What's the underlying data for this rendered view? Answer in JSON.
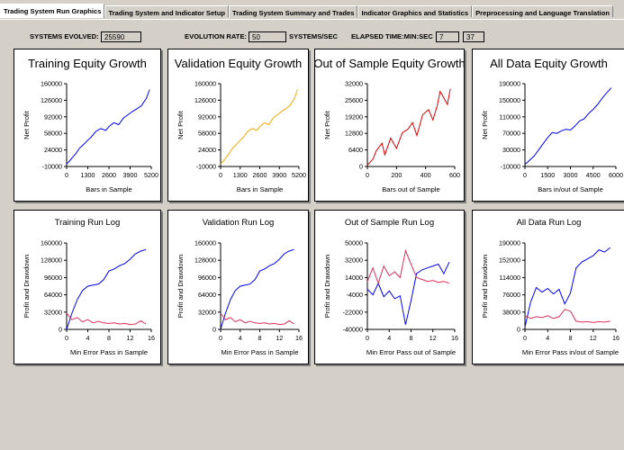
{
  "tabs": [
    {
      "label": "Trading System Run Graphics",
      "active": true
    },
    {
      "label": "Trading System and Indicator Setup",
      "active": false
    },
    {
      "label": "Trading System Summary and Trades",
      "active": false
    },
    {
      "label": "Indicator Graphics and Statistics",
      "active": false
    },
    {
      "label": "Preprocessing and Language Translation",
      "active": false
    }
  ],
  "stats": {
    "systems_evolved_label": "SYSTEMS EVOLVED:",
    "systems_evolved_value": "25590",
    "evolution_rate_label": "EVOLUTION RATE:",
    "evolution_rate_value": "50",
    "evolution_rate_unit": "SYSTEMS/SEC",
    "elapsed_label": "ELAPSED TIME:MIN:SEC",
    "elapsed_min": "7",
    "elapsed_sec": "37"
  },
  "colors": {
    "blue": "#0000ff",
    "orange": "#ffa500",
    "red": "#e00000",
    "pink": "#e0305a"
  },
  "chart_data": [
    {
      "type": "line",
      "title": "Training Equity Growth",
      "xlabel": "Bars in Sample",
      "ylabel": "Net Profit",
      "xlim": [
        0,
        5200
      ],
      "ylim": [
        -10000,
        160000
      ],
      "xticks": [
        "0",
        "1300",
        "2600",
        "3900",
        "5200"
      ],
      "yticks": [
        "160000",
        "126000",
        "92000",
        "58000",
        "24000",
        "-10000"
      ],
      "series": [
        {
          "color": "#0000ff",
          "x": [
            0,
            200,
            400,
            600,
            800,
            1000,
            1300,
            1500,
            1800,
            2100,
            2400,
            2600,
            2900,
            3200,
            3500,
            3800,
            4000,
            4300,
            4600,
            4900,
            5100
          ],
          "y": [
            -5000,
            2000,
            10000,
            18000,
            28000,
            34000,
            44000,
            50000,
            62000,
            68000,
            64000,
            72000,
            80000,
            76000,
            90000,
            97000,
            102000,
            108000,
            115000,
            130000,
            148000
          ]
        }
      ]
    },
    {
      "type": "line",
      "title": "Validation Equity Growth",
      "xlabel": "Bars in Sample",
      "ylabel": "Net Profit",
      "xlim": [
        0,
        5200
      ],
      "ylim": [
        -10000,
        160000
      ],
      "xticks": [
        "0",
        "1300",
        "2600",
        "3900",
        "5200"
      ],
      "yticks": [
        "160000",
        "126000",
        "92000",
        "58000",
        "24000",
        "-10000"
      ],
      "series": [
        {
          "color": "#ffa500",
          "x": [
            0,
            200,
            400,
            600,
            800,
            1000,
            1300,
            1500,
            1800,
            2100,
            2400,
            2600,
            2900,
            3200,
            3500,
            3800,
            4000,
            4300,
            4600,
            4900,
            5100
          ],
          "y": [
            -5000,
            2000,
            10000,
            18000,
            28000,
            34000,
            44000,
            50000,
            62000,
            68000,
            64000,
            72000,
            80000,
            76000,
            90000,
            97000,
            102000,
            108000,
            115000,
            130000,
            148000
          ]
        }
      ]
    },
    {
      "type": "line",
      "title": "Out of Sample Equity Growth",
      "xlabel": "Bars out of Sample",
      "ylabel": "Net Profit",
      "xlim": [
        0,
        600
      ],
      "ylim": [
        0,
        32000
      ],
      "xticks": [
        "0",
        "200",
        "400",
        "600"
      ],
      "yticks": [
        "32000",
        "25600",
        "19200",
        "12800",
        "6400",
        "0"
      ],
      "series": [
        {
          "color": "#e00000",
          "x": [
            0,
            40,
            60,
            100,
            120,
            160,
            200,
            240,
            280,
            310,
            340,
            380,
            420,
            450,
            480,
            500,
            520,
            550,
            570
          ],
          "y": [
            500,
            3000,
            6000,
            9000,
            4500,
            11000,
            7000,
            13000,
            14500,
            17000,
            12000,
            20000,
            22000,
            18000,
            23500,
            29000,
            27000,
            24000,
            30000
          ]
        }
      ]
    },
    {
      "type": "line",
      "title": "All Data Equity Growth",
      "xlabel": "Bars in/out of Sample",
      "ylabel": "Net Profit",
      "xlim": [
        0,
        6000
      ],
      "ylim": [
        -10000,
        190000
      ],
      "xticks": [
        "0",
        "1500",
        "3000",
        "4500",
        "6000"
      ],
      "yticks": [
        "190000",
        "150000",
        "110000",
        "70000",
        "30000",
        "-10000"
      ],
      "series": [
        {
          "color": "#0000ff",
          "x": [
            0,
            300,
            600,
            900,
            1200,
            1500,
            1800,
            2100,
            2400,
            2700,
            3000,
            3300,
            3600,
            3900,
            4200,
            4500,
            4800,
            5100,
            5400,
            5700
          ],
          "y": [
            -5000,
            5000,
            15000,
            30000,
            45000,
            60000,
            72000,
            70000,
            76000,
            80000,
            78000,
            88000,
            100000,
            105000,
            118000,
            128000,
            140000,
            155000,
            168000,
            180000
          ]
        }
      ]
    },
    {
      "type": "line",
      "title": "Training Run Log",
      "xlabel": "Min Error Pass in Sample",
      "ylabel": "Profit and Drawdown",
      "xlim": [
        0,
        16
      ],
      "ylim": [
        0,
        160000
      ],
      "xticks": [
        "0",
        "4",
        "8",
        "12",
        "16"
      ],
      "yticks": [
        "160000",
        "128000",
        "96000",
        "64000",
        "32000",
        "0"
      ],
      "series": [
        {
          "color": "#0000ff",
          "x": [
            0,
            1,
            2,
            3,
            4,
            5,
            6,
            7,
            8,
            9,
            10,
            11,
            12,
            13,
            14,
            15
          ],
          "y": [
            0,
            30000,
            55000,
            72000,
            80000,
            82000,
            84000,
            92000,
            108000,
            112000,
            118000,
            122000,
            130000,
            140000,
            145000,
            148000
          ]
        },
        {
          "color": "#e0305a",
          "x": [
            0,
            1,
            2,
            3,
            4,
            5,
            6,
            7,
            8,
            9,
            10,
            11,
            12,
            13,
            14,
            15
          ],
          "y": [
            30000,
            18000,
            22000,
            14000,
            18000,
            12000,
            15000,
            12000,
            11000,
            12000,
            10000,
            11000,
            9000,
            10000,
            16000,
            10000
          ]
        }
      ]
    },
    {
      "type": "line",
      "title": "Validation Run Log",
      "xlabel": "Min Error Pass in Sample",
      "ylabel": "Profit and Drawdown",
      "xlim": [
        0,
        16
      ],
      "ylim": [
        0,
        160000
      ],
      "xticks": [
        "0",
        "4",
        "8",
        "12",
        "16"
      ],
      "yticks": [
        "160000",
        "128000",
        "96000",
        "64000",
        "32000",
        "0"
      ],
      "series": [
        {
          "color": "#0000ff",
          "x": [
            0,
            1,
            2,
            3,
            4,
            5,
            6,
            7,
            8,
            9,
            10,
            11,
            12,
            13,
            14,
            15
          ],
          "y": [
            0,
            30000,
            55000,
            72000,
            80000,
            82000,
            84000,
            92000,
            108000,
            112000,
            118000,
            122000,
            130000,
            140000,
            145000,
            148000
          ]
        },
        {
          "color": "#e0305a",
          "x": [
            0,
            1,
            2,
            3,
            4,
            5,
            6,
            7,
            8,
            9,
            10,
            11,
            12,
            13,
            14,
            15
          ],
          "y": [
            30000,
            18000,
            22000,
            14000,
            18000,
            12000,
            15000,
            12000,
            11000,
            12000,
            10000,
            11000,
            9000,
            10000,
            16000,
            10000
          ]
        }
      ]
    },
    {
      "type": "line",
      "title": "Out of Sample Run Log",
      "xlabel": "Min Error Pass out of Sample",
      "ylabel": "Profit and Drawdown",
      "xlim": [
        0,
        16
      ],
      "ylim": [
        -40000,
        50000
      ],
      "xticks": [
        "0",
        "4",
        "8",
        "12",
        "16"
      ],
      "yticks": [
        "50000",
        "32000",
        "14000",
        "-4000",
        "-22000",
        "-40000"
      ],
      "series": [
        {
          "color": "#0000ff",
          "x": [
            0,
            1,
            2,
            3,
            4,
            5,
            6,
            7,
            8,
            9,
            10,
            11,
            12,
            13,
            14,
            15
          ],
          "y": [
            2000,
            -4000,
            8000,
            -6000,
            0,
            -8000,
            -5000,
            -35000,
            -10000,
            18000,
            22000,
            24000,
            26000,
            28000,
            18000,
            30000
          ]
        },
        {
          "color": "#e0305a",
          "x": [
            0,
            1,
            2,
            3,
            4,
            5,
            6,
            7,
            8,
            9,
            10,
            11,
            12,
            13,
            14,
            15
          ],
          "y": [
            10000,
            24000,
            8000,
            26000,
            16000,
            20000,
            14000,
            42000,
            28000,
            14000,
            12000,
            10000,
            11000,
            9000,
            10000,
            8000
          ]
        }
      ]
    },
    {
      "type": "line",
      "title": "All Data Run Log",
      "xlabel": "Min Error Pass in/out of Sample",
      "ylabel": "Profit and Drawdown",
      "xlim": [
        0,
        16
      ],
      "ylim": [
        0,
        190000
      ],
      "xticks": [
        "0",
        "4",
        "8",
        "12",
        "16"
      ],
      "yticks": [
        "190000",
        "152000",
        "114000",
        "76000",
        "38000",
        "0"
      ],
      "series": [
        {
          "color": "#0000ff",
          "x": [
            0,
            1,
            2,
            3,
            4,
            5,
            6,
            7,
            8,
            9,
            10,
            11,
            12,
            13,
            14,
            15
          ],
          "y": [
            5000,
            60000,
            92000,
            82000,
            90000,
            78000,
            88000,
            56000,
            80000,
            135000,
            148000,
            155000,
            162000,
            175000,
            170000,
            180000
          ]
        },
        {
          "color": "#e0305a",
          "x": [
            0,
            1,
            2,
            3,
            4,
            5,
            6,
            7,
            8,
            9,
            10,
            11,
            12,
            13,
            14,
            15
          ],
          "y": [
            30000,
            24000,
            28000,
            26000,
            30000,
            24000,
            28000,
            44000,
            40000,
            18000,
            16000,
            17000,
            15000,
            17000,
            16000,
            18000
          ]
        }
      ]
    }
  ]
}
